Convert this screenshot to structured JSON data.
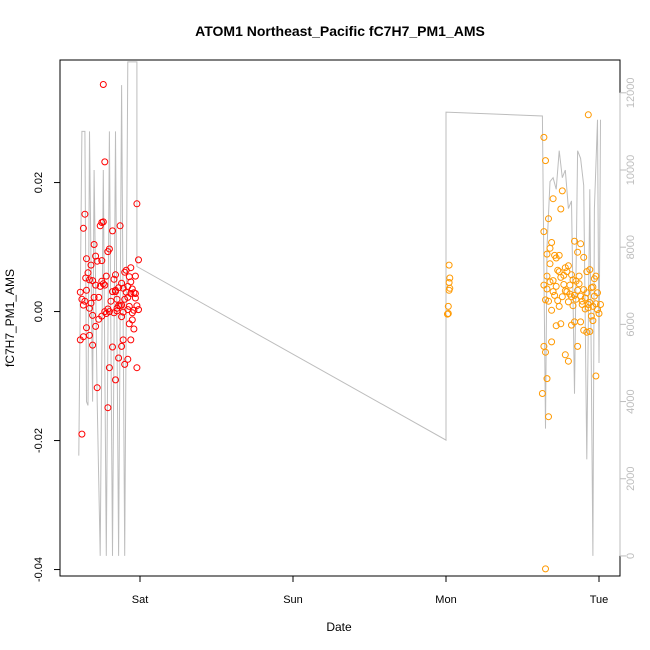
{
  "chart_data": {
    "type": "scatter",
    "title": "ATOM1 Northeast_Pacific fC7H7_PM1_AMS",
    "xlabel": "Date",
    "ylabel": "fC7H7_PM1_AMS",
    "x_ticks": [
      {
        "day": 0,
        "label": "Sat"
      },
      {
        "day": 1,
        "label": "Sun"
      },
      {
        "day": 2,
        "label": "Mon"
      },
      {
        "day": 3,
        "label": "Tue"
      }
    ],
    "ylim": [
      -0.041,
      0.039
    ],
    "y_ticks": [
      -0.04,
      -0.02,
      0.0,
      0.02
    ],
    "y_tick_labels": [
      "-0.04",
      "-0.02",
      "0.00",
      "0.02"
    ],
    "y2lim": [
      -520,
      12850
    ],
    "y2_ticks": [
      0,
      2000,
      4000,
      6000,
      8000,
      10000,
      12000
    ],
    "y2_tick_labels": [
      "0",
      "2000",
      "4000",
      "6000",
      "8000",
      "10000",
      "12000"
    ],
    "colors": {
      "red": "#ff0000",
      "orange": "#ff9900",
      "altitude": "#bdbdbd",
      "axis": "#000000"
    },
    "altitude_line": [
      [
        -0.4,
        2600
      ],
      [
        -0.38,
        11000
      ],
      [
        -0.36,
        11000
      ],
      [
        -0.35,
        4000
      ],
      [
        -0.34,
        3900
      ],
      [
        -0.33,
        11000
      ],
      [
        -0.31,
        4000
      ],
      [
        -0.3,
        10000
      ],
      [
        -0.28,
        4000
      ],
      [
        -0.26,
        0
      ],
      [
        -0.24,
        10000
      ],
      [
        -0.22,
        0
      ],
      [
        -0.2,
        11000
      ],
      [
        -0.18,
        0
      ],
      [
        -0.16,
        11000
      ],
      [
        -0.14,
        0
      ],
      [
        -0.12,
        12200
      ],
      [
        -0.1,
        0
      ],
      [
        -0.08,
        12800
      ],
      [
        -0.02,
        12800
      ],
      [
        -0.02,
        7500
      ],
      [
        2.0,
        3000
      ],
      [
        2.0,
        11500
      ],
      [
        2.63,
        11400
      ],
      [
        2.65,
        3300
      ],
      [
        2.66,
        8000
      ],
      [
        2.68,
        9700
      ],
      [
        2.7,
        9800
      ],
      [
        2.72,
        9500
      ],
      [
        2.74,
        10500
      ],
      [
        2.76,
        9800
      ],
      [
        2.78,
        10000
      ],
      [
        2.8,
        9000
      ],
      [
        2.82,
        9200
      ],
      [
        2.84,
        4200
      ],
      [
        2.86,
        10500
      ],
      [
        2.88,
        10300
      ],
      [
        2.9,
        9600
      ],
      [
        2.92,
        2500
      ],
      [
        2.94,
        9500
      ],
      [
        2.96,
        0
      ],
      [
        2.97,
        9000
      ],
      [
        2.99,
        11300
      ],
      [
        3.0,
        5000
      ],
      [
        3.01,
        11300
      ]
    ],
    "series": [
      {
        "color": "red",
        "points": [
          [
            -0.38,
            -0.019
          ],
          [
            -0.355,
            0.0052
          ],
          [
            -0.33,
            0.0049
          ],
          [
            -0.31,
            0.0048
          ],
          [
            -0.28,
            -0.0118
          ],
          [
            -0.25,
            0.0138
          ],
          [
            -0.23,
            0.0232
          ],
          [
            -0.24,
            0.0139
          ],
          [
            -0.36,
            0.0151
          ],
          [
            -0.3,
            0.0104
          ],
          [
            -0.25,
            0.0079
          ],
          [
            -0.24,
            0.0043
          ],
          [
            -0.22,
            0.0055
          ],
          [
            -0.2,
            0.0097
          ],
          [
            -0.18,
            0.0125
          ],
          [
            -0.16,
            0.0057
          ],
          [
            -0.14,
            0.0037
          ],
          [
            -0.12,
            0.0044
          ],
          [
            -0.1,
            0.0061
          ],
          [
            -0.08,
            0.0022
          ],
          [
            -0.06,
            0.0068
          ],
          [
            -0.04,
            0.0029
          ],
          [
            -0.02,
            0.0167
          ],
          [
            -0.39,
            -0.0044
          ],
          [
            -0.37,
            -0.0039
          ],
          [
            -0.35,
            -0.0025
          ],
          [
            -0.33,
            -0.0037
          ],
          [
            -0.31,
            -0.0052
          ],
          [
            -0.29,
            -0.0023
          ],
          [
            -0.27,
            -0.0012
          ],
          [
            -0.25,
            -0.0007
          ],
          [
            -0.23,
            0.0
          ],
          [
            -0.21,
            -0.0149
          ],
          [
            -0.2,
            -0.0087
          ],
          [
            -0.18,
            -0.0055
          ],
          [
            -0.16,
            -0.0106
          ],
          [
            -0.14,
            -0.0072
          ],
          [
            -0.12,
            -0.0054
          ],
          [
            -0.1,
            -0.0082
          ],
          [
            -0.08,
            -0.0074
          ],
          [
            -0.06,
            -0.0044
          ],
          [
            -0.04,
            -0.0027
          ],
          [
            -0.02,
            -0.0087
          ],
          [
            -0.35,
            0.0082
          ],
          [
            -0.32,
            0.0072
          ],
          [
            -0.29,
            0.0086
          ],
          [
            -0.26,
            0.0133
          ],
          [
            -0.23,
            0.0041
          ],
          [
            -0.2,
            0.0
          ],
          [
            -0.17,
            -0.0002
          ],
          [
            -0.15,
            0.0005
          ],
          [
            -0.13,
            0.0133
          ],
          [
            -0.11,
            -0.0001
          ],
          [
            -0.09,
            0.0064
          ],
          [
            -0.07,
            0.0054
          ],
          [
            -0.05,
            -0.0013
          ],
          [
            -0.03,
            0.0028
          ],
          [
            -0.01,
            0.008
          ],
          [
            -0.39,
            0.003
          ],
          [
            -0.38,
            0.0019
          ],
          [
            -0.37,
            0.001
          ],
          [
            -0.36,
            0.0016
          ],
          [
            -0.35,
            0.0033
          ],
          [
            -0.34,
            0.006
          ],
          [
            -0.33,
            0.0005
          ],
          [
            -0.32,
            0.0013
          ],
          [
            -0.31,
            -0.0006
          ],
          [
            -0.3,
            0.0022
          ],
          [
            -0.29,
            0.0041
          ],
          [
            -0.28,
            0.0078
          ],
          [
            -0.27,
            0.0022
          ],
          [
            -0.26,
            0.0039
          ],
          [
            -0.25,
            0.0047
          ],
          [
            -0.22,
            -0.0003
          ],
          [
            -0.21,
            0.0004
          ],
          [
            -0.19,
            0.0016
          ],
          [
            -0.18,
            0.0031
          ],
          [
            -0.17,
            0.005
          ],
          [
            -0.16,
            0.0031
          ],
          [
            -0.15,
            0.0019
          ],
          [
            -0.14,
            0.0009
          ],
          [
            -0.13,
            0.0009
          ],
          [
            -0.12,
            -0.0008
          ],
          [
            -0.11,
            0.0036
          ],
          [
            -0.1,
            0.0019
          ],
          [
            -0.09,
            0.003
          ],
          [
            -0.08,
            0.0003
          ],
          [
            -0.07,
            0.0008
          ],
          [
            -0.06,
            0.0046
          ],
          [
            -0.05,
            0.0035
          ],
          [
            -0.04,
            0.0002
          ],
          [
            -0.03,
            0.0021
          ],
          [
            -0.02,
            0.0009
          ],
          [
            -0.01,
            0.0003
          ],
          [
            -0.24,
            0.0352
          ],
          [
            -0.37,
            0.0129
          ],
          [
            -0.21,
            0.0093
          ],
          [
            -0.15,
            0.0001
          ],
          [
            -0.11,
            -0.0044
          ],
          [
            -0.07,
            -0.0019
          ],
          [
            -0.05,
            -0.0002
          ],
          [
            -0.03,
            0.0055
          ],
          [
            -0.16,
            0.0033
          ],
          [
            -0.12,
            0.001
          ],
          [
            -0.08,
            0.0039
          ],
          [
            -0.06,
            0.0028
          ]
        ]
      },
      {
        "color": "orange",
        "points": [
          [
            2.02,
            0.0072
          ],
          [
            2.025,
            0.0052
          ],
          [
            2.02,
            0.0045
          ],
          [
            2.015,
            0.0008
          ],
          [
            2.01,
            -0.0004
          ],
          [
            2.015,
            -0.0003
          ],
          [
            2.02,
            0.0033
          ],
          [
            2.025,
            0.0036
          ],
          [
            2.64,
            0.027
          ],
          [
            2.65,
            0.0234
          ],
          [
            2.64,
            0.0124
          ],
          [
            2.66,
            0.0089
          ],
          [
            2.67,
            0.0144
          ],
          [
            2.68,
            0.0074
          ],
          [
            2.69,
            0.0107
          ],
          [
            2.7,
            0.0175
          ],
          [
            2.72,
            0.0083
          ],
          [
            2.74,
            0.0087
          ],
          [
            2.76,
            0.0187
          ],
          [
            2.75,
            0.0159
          ],
          [
            2.78,
            0.0068
          ],
          [
            2.8,
            0.0071
          ],
          [
            2.82,
            0.0057
          ],
          [
            2.84,
            0.0109
          ],
          [
            2.86,
            0.0092
          ],
          [
            2.88,
            0.0105
          ],
          [
            2.9,
            0.0084
          ],
          [
            2.92,
            0.0062
          ],
          [
            2.94,
            0.0065
          ],
          [
            2.96,
            0.0038
          ],
          [
            2.98,
            0.0055
          ],
          [
            2.93,
            0.0305
          ],
          [
            2.63,
            -0.0127
          ],
          [
            2.64,
            -0.0054
          ],
          [
            2.65,
            -0.0063
          ],
          [
            2.66,
            -0.0104
          ],
          [
            2.67,
            -0.0163
          ],
          [
            2.69,
            -0.0047
          ],
          [
            2.72,
            -0.0022
          ],
          [
            2.75,
            -0.0019
          ],
          [
            2.78,
            -0.0067
          ],
          [
            2.8,
            -0.0077
          ],
          [
            2.82,
            -0.0021
          ],
          [
            2.84,
            -0.0016
          ],
          [
            2.86,
            -0.0054
          ],
          [
            2.88,
            -0.0016
          ],
          [
            2.9,
            -0.0029
          ],
          [
            2.92,
            -0.0032
          ],
          [
            2.94,
            -0.0031
          ],
          [
            2.96,
            -0.0014
          ],
          [
            2.98,
            -0.01
          ],
          [
            2.65,
            -0.0399
          ],
          [
            2.64,
            0.0041
          ],
          [
            2.65,
            0.0018
          ],
          [
            2.66,
            0.0035
          ],
          [
            2.67,
            0.0016
          ],
          [
            2.68,
            0.0046
          ],
          [
            2.69,
            0.0002
          ],
          [
            2.7,
            0.0031
          ],
          [
            2.71,
            0.0025
          ],
          [
            2.72,
            0.0039
          ],
          [
            2.73,
            0.0017
          ],
          [
            2.74,
            0.0008
          ],
          [
            2.75,
            0.0053
          ],
          [
            2.76,
            0.0023
          ],
          [
            2.77,
            0.0042
          ],
          [
            2.78,
            0.0032
          ],
          [
            2.79,
            0.0031
          ],
          [
            2.8,
            0.0015
          ],
          [
            2.81,
            0.0041
          ],
          [
            2.82,
            0.0023
          ],
          [
            2.83,
            0.0009
          ],
          [
            2.84,
            0.0025
          ],
          [
            2.85,
            0.0047
          ],
          [
            2.86,
            0.0033
          ],
          [
            2.87,
            0.0043
          ],
          [
            2.88,
            0.0024
          ],
          [
            2.89,
            0.0011
          ],
          [
            2.9,
            0.0034
          ],
          [
            2.91,
            0.0004
          ],
          [
            2.92,
            0.0029
          ],
          [
            2.93,
            0.0006
          ],
          [
            2.94,
            0.0014
          ],
          [
            2.95,
            0.0037
          ],
          [
            2.96,
            0.0008
          ],
          [
            2.97,
            0.0024
          ],
          [
            2.98,
            0.0012
          ],
          [
            2.99,
            0.0003
          ],
          [
            3.0,
            -0.0003
          ],
          [
            3.01,
            0.0011
          ],
          [
            2.68,
            0.0098
          ],
          [
            2.71,
            0.0087
          ],
          [
            2.74,
            0.0062
          ],
          [
            2.79,
            0.0062
          ],
          [
            2.83,
            0.0049
          ],
          [
            2.87,
            0.0055
          ],
          [
            2.91,
            0.0021
          ],
          [
            2.95,
            -0.0007
          ],
          [
            2.97,
            0.0051
          ],
          [
            2.66,
            0.0055
          ],
          [
            2.7,
            0.0048
          ],
          [
            2.73,
            0.0064
          ],
          [
            2.77,
            0.0056
          ],
          [
            2.81,
            0.0027
          ],
          [
            2.85,
            0.0019
          ],
          [
            2.89,
            0.0016
          ],
          [
            2.93,
            0.0011
          ],
          [
            2.99,
            0.0029
          ]
        ]
      }
    ]
  }
}
